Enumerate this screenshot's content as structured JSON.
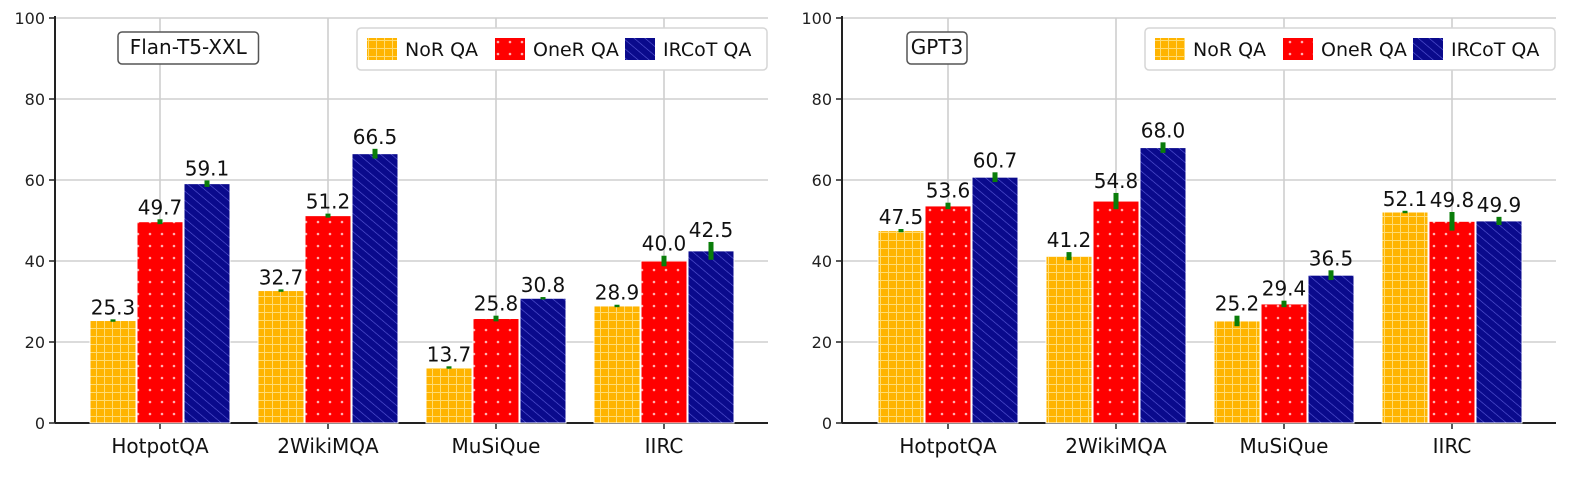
{
  "chart_data": [
    {
      "type": "bar",
      "title": "Flan-T5-XXL",
      "xlabel": "",
      "ylabel": "",
      "ylim": [
        0,
        100
      ],
      "yticks": [
        0,
        20,
        40,
        60,
        80,
        100
      ],
      "grid": true,
      "legend_position": "top-right",
      "categories": [
        "HotpotQA",
        "2WikiMQA",
        "MuSiQue",
        "IIRC"
      ],
      "series": [
        {
          "name": "NoR QA",
          "values": [
            25.3,
            32.7,
            13.7,
            28.9
          ],
          "labels": [
            "25.3",
            "32.7",
            "13.7",
            "28.9"
          ],
          "errors": [
            0.3,
            0.3,
            0.3,
            0.3
          ],
          "color": "#FFB400"
        },
        {
          "name": "OneR QA",
          "values": [
            49.7,
            51.2,
            25.8,
            40.0
          ],
          "labels": [
            "49.7",
            "51.2",
            "25.8",
            "40.0"
          ],
          "errors": [
            0.6,
            0.5,
            0.7,
            1.3
          ],
          "color": "#FF0000"
        },
        {
          "name": "IRCoT QA",
          "values": [
            59.1,
            66.5,
            30.8,
            42.5
          ],
          "labels": [
            "59.1",
            "66.5",
            "30.8",
            "42.5"
          ],
          "errors": [
            0.8,
            1.2,
            0.3,
            2.2
          ],
          "color": "#0A0A8C"
        }
      ]
    },
    {
      "type": "bar",
      "title": "GPT3",
      "xlabel": "",
      "ylabel": "",
      "ylim": [
        0,
        100
      ],
      "yticks": [
        0,
        20,
        40,
        60,
        80,
        100
      ],
      "grid": true,
      "legend_position": "top-right",
      "categories": [
        "HotpotQA",
        "2WikiMQA",
        "MuSiQue",
        "IIRC"
      ],
      "series": [
        {
          "name": "NoR QA",
          "values": [
            47.5,
            41.2,
            25.2,
            52.1
          ],
          "labels": [
            "47.5",
            "41.2",
            "25.2",
            "52.1"
          ],
          "errors": [
            0.4,
            1.0,
            1.3,
            0.3
          ],
          "color": "#FFB400"
        },
        {
          "name": "OneR QA",
          "values": [
            53.6,
            54.8,
            29.4,
            49.8
          ],
          "labels": [
            "53.6",
            "54.8",
            "29.4",
            "49.8"
          ],
          "errors": [
            0.8,
            2.0,
            0.8,
            2.3
          ],
          "color": "#FF0000"
        },
        {
          "name": "IRCoT QA",
          "values": [
            60.7,
            68.0,
            36.5,
            49.9
          ],
          "labels": [
            "60.7",
            "68.0",
            "36.5",
            "49.9"
          ],
          "errors": [
            1.2,
            1.3,
            1.2,
            1.0
          ],
          "color": "#0A0A8C"
        }
      ]
    }
  ]
}
